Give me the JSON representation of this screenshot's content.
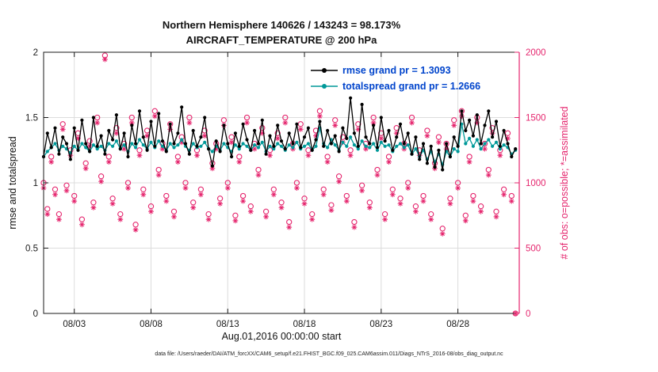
{
  "title": {
    "line1": "Northern Hemisphere 140626 / 143243 = 98.173%",
    "line2": "AIRCRAFT_TEMPERATURE @ 200 hPa"
  },
  "axes": {
    "left_label": "rmse and totalspread",
    "right_label": "# of obs: o=possible; *=assimilated",
    "x_label": "Aug.01,2016 00:00:00 start",
    "x_ticks": [
      "08/03",
      "08/08",
      "08/13",
      "08/18",
      "08/23",
      "08/28"
    ],
    "x_tick_days": [
      3,
      8,
      13,
      18,
      23,
      28
    ],
    "left_ticks": [
      0,
      0.5,
      1,
      1.5,
      2
    ],
    "right_ticks": [
      0,
      500,
      1000,
      1500,
      2000
    ],
    "xlim": [
      1,
      32
    ],
    "left_ylim": [
      0,
      2
    ],
    "right_ylim": [
      0,
      2000
    ]
  },
  "legend": [
    {
      "label": "rmse grand pr = 1.3093",
      "color": "#000000"
    },
    {
      "label": "totalspread grand pr = 1.2666",
      "color": "#009999"
    }
  ],
  "colors": {
    "rmse": "#000000",
    "totalspread": "#009999",
    "obs": "#e5266e",
    "legend_text": "#0044cc",
    "grid": "#dcdcdc",
    "axis": "#1a1a1a"
  },
  "caption": "data file: /Users/raeder/DAI/ATM_forcXX/CAM6_setup/f.e21.FHIST_BGC.f09_025.CAM6assim.011/Diags_NTrS_2016-08/obs_diag_output.nc",
  "chart_data": {
    "type": "line",
    "x_start_day": 1.0,
    "x_step_days": 0.25,
    "series": [
      {
        "name": "rmse",
        "axis": "left",
        "marker": "dot",
        "values": [
          1.2,
          1.38,
          1.27,
          1.42,
          1.22,
          1.35,
          1.3,
          1.18,
          1.42,
          1.25,
          1.48,
          1.3,
          1.24,
          1.5,
          1.28,
          1.36,
          1.22,
          1.4,
          1.33,
          1.52,
          1.26,
          1.38,
          1.2,
          1.44,
          1.3,
          1.55,
          1.35,
          1.25,
          1.47,
          1.28,
          1.53,
          1.32,
          1.24,
          1.45,
          1.3,
          1.38,
          1.58,
          1.3,
          1.22,
          1.4,
          1.28,
          1.35,
          1.5,
          1.26,
          1.13,
          1.32,
          1.24,
          1.44,
          1.3,
          1.2,
          1.38,
          1.28,
          1.45,
          1.33,
          1.25,
          1.4,
          1.3,
          1.48,
          1.22,
          1.36,
          1.28,
          1.44,
          1.32,
          1.26,
          1.38,
          1.3,
          1.45,
          1.27,
          1.35,
          1.42,
          1.25,
          1.33,
          1.47,
          1.28,
          1.4,
          1.3,
          1.36,
          1.24,
          1.42,
          1.34,
          1.65,
          1.38,
          1.28,
          1.6,
          1.35,
          1.3,
          1.44,
          1.27,
          1.5,
          1.32,
          1.4,
          1.25,
          1.35,
          1.45,
          1.3,
          1.38,
          1.22,
          1.35,
          1.18,
          1.3,
          1.15,
          1.28,
          1.12,
          1.25,
          1.1,
          1.3,
          1.2,
          1.35,
          1.28,
          1.55,
          1.4,
          1.48,
          1.36,
          1.52,
          1.3,
          1.44,
          1.55,
          1.35,
          1.47,
          1.28,
          1.4,
          1.3,
          1.2,
          1.26
        ]
      },
      {
        "name": "totalspread",
        "axis": "left",
        "marker": "dot",
        "values": [
          1.2,
          1.24,
          1.27,
          1.3,
          1.25,
          1.28,
          1.26,
          1.23,
          1.28,
          1.25,
          1.3,
          1.27,
          1.24,
          1.29,
          1.26,
          1.28,
          1.25,
          1.3,
          1.28,
          1.32,
          1.26,
          1.29,
          1.24,
          1.3,
          1.27,
          1.33,
          1.29,
          1.26,
          1.31,
          1.27,
          1.32,
          1.28,
          1.25,
          1.3,
          1.27,
          1.29,
          1.33,
          1.28,
          1.25,
          1.3,
          1.27,
          1.28,
          1.31,
          1.26,
          1.24,
          1.28,
          1.25,
          1.3,
          1.27,
          1.24,
          1.29,
          1.26,
          1.3,
          1.28,
          1.25,
          1.29,
          1.27,
          1.31,
          1.24,
          1.28,
          1.26,
          1.3,
          1.28,
          1.25,
          1.29,
          1.27,
          1.31,
          1.26,
          1.28,
          1.3,
          1.25,
          1.28,
          1.42,
          1.3,
          1.27,
          1.33,
          1.29,
          1.25,
          1.31,
          1.28,
          1.35,
          1.29,
          1.26,
          1.32,
          1.28,
          1.27,
          1.3,
          1.25,
          1.31,
          1.28,
          1.29,
          1.24,
          1.28,
          1.3,
          1.27,
          1.29,
          1.22,
          1.26,
          1.2,
          1.25,
          1.18,
          1.24,
          1.16,
          1.22,
          1.14,
          1.24,
          1.2,
          1.26,
          1.24,
          1.45,
          1.3,
          1.34,
          1.28,
          1.33,
          1.26,
          1.3,
          1.33,
          1.28,
          1.31,
          1.26,
          1.29,
          1.27,
          1.22,
          1.25
        ]
      },
      {
        "name": "possible",
        "axis": "right",
        "marker": "circle",
        "values": [
          1000,
          800,
          1200,
          950,
          760,
          1450,
          980,
          1250,
          900,
          1380,
          720,
          1150,
          1320,
          850,
          1500,
          1050,
          1975,
          1200,
          880,
          1420,
          760,
          1300,
          1000,
          1500,
          680,
          1250,
          950,
          1400,
          820,
          1550,
          1100,
          1300,
          900,
          1450,
          780,
          1200,
          1350,
          1000,
          1500,
          850,
          1250,
          950,
          1400,
          760,
          1150,
          1300,
          880,
          1480,
          1000,
          1350,
          750,
          1200,
          900,
          1500,
          820,
          1300,
          1100,
          1420,
          780,
          1250,
          950,
          1380,
          850,
          1500,
          700,
          1300,
          1000,
          1450,
          880,
          1250,
          760,
          1400,
          1550,
          950,
          1200,
          830,
          1480,
          1050,
          1350,
          900,
          1250,
          700,
          1450,
          980,
          1300,
          850,
          1500,
          1100,
          1380,
          760,
          1200,
          950,
          1420,
          880,
          1300,
          1000,
          1500,
          820,
          1250,
          900,
          1400,
          760,
          1150,
          1350,
          650,
          1300,
          880,
          1480,
          1000,
          1550,
          750,
          1200,
          900,
          1500,
          820,
          1300,
          1100,
          1420,
          780,
          1250,
          950,
          1380,
          900,
          0
        ]
      },
      {
        "name": "assimilated",
        "axis": "right",
        "marker": "asterisk",
        "values": [
          960,
          760,
          1160,
          910,
          720,
          1410,
          940,
          1210,
          860,
          1340,
          680,
          1110,
          1280,
          810,
          1460,
          1010,
          1945,
          1160,
          840,
          1380,
          720,
          1260,
          960,
          1460,
          640,
          1210,
          910,
          1360,
          780,
          1510,
          1060,
          1260,
          860,
          1410,
          740,
          1160,
          1310,
          960,
          1460,
          810,
          1210,
          910,
          1360,
          720,
          1110,
          1260,
          840,
          1440,
          960,
          1310,
          710,
          1160,
          860,
          1460,
          780,
          1260,
          1060,
          1380,
          740,
          1210,
          910,
          1340,
          810,
          1460,
          660,
          1260,
          960,
          1410,
          840,
          1210,
          720,
          1360,
          1510,
          910,
          1160,
          790,
          1440,
          1010,
          1310,
          860,
          1210,
          660,
          1410,
          940,
          1260,
          810,
          1460,
          1060,
          1340,
          720,
          1160,
          910,
          1380,
          840,
          1260,
          960,
          1460,
          780,
          1210,
          860,
          1360,
          720,
          1110,
          1310,
          610,
          1260,
          840,
          1440,
          960,
          1510,
          710,
          1160,
          860,
          1460,
          780,
          1260,
          1060,
          1380,
          740,
          1210,
          910,
          1340,
          860,
          0
        ]
      }
    ]
  }
}
